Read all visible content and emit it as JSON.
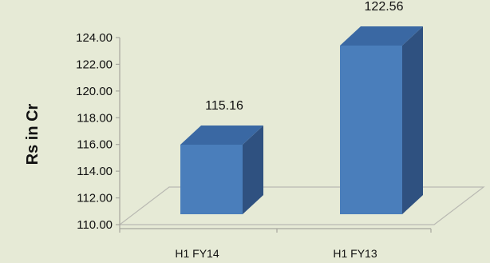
{
  "chart_data": {
    "type": "bar",
    "title": "",
    "xlabel": "",
    "ylabel": "Rs in Cr",
    "categories": [
      "H1 FY14",
      "H1 FY13"
    ],
    "values": [
      115.16,
      122.56
    ],
    "data_labels": [
      "115.16",
      "122.56"
    ],
    "y_ticks": [
      "110.00",
      "112.00",
      "114.00",
      "116.00",
      "118.00",
      "120.00",
      "122.00",
      "124.00"
    ],
    "ylim": [
      110,
      124
    ],
    "grid": false,
    "legend": "none",
    "style": "3d-column",
    "colors": {
      "background": "#e6ead6",
      "bar_front": "#4a7ebb",
      "bar_side": "#2f5180",
      "bar_top": "#3a68a3",
      "floor_line": "#b9b9b2",
      "axis": "#a6a69e"
    }
  }
}
